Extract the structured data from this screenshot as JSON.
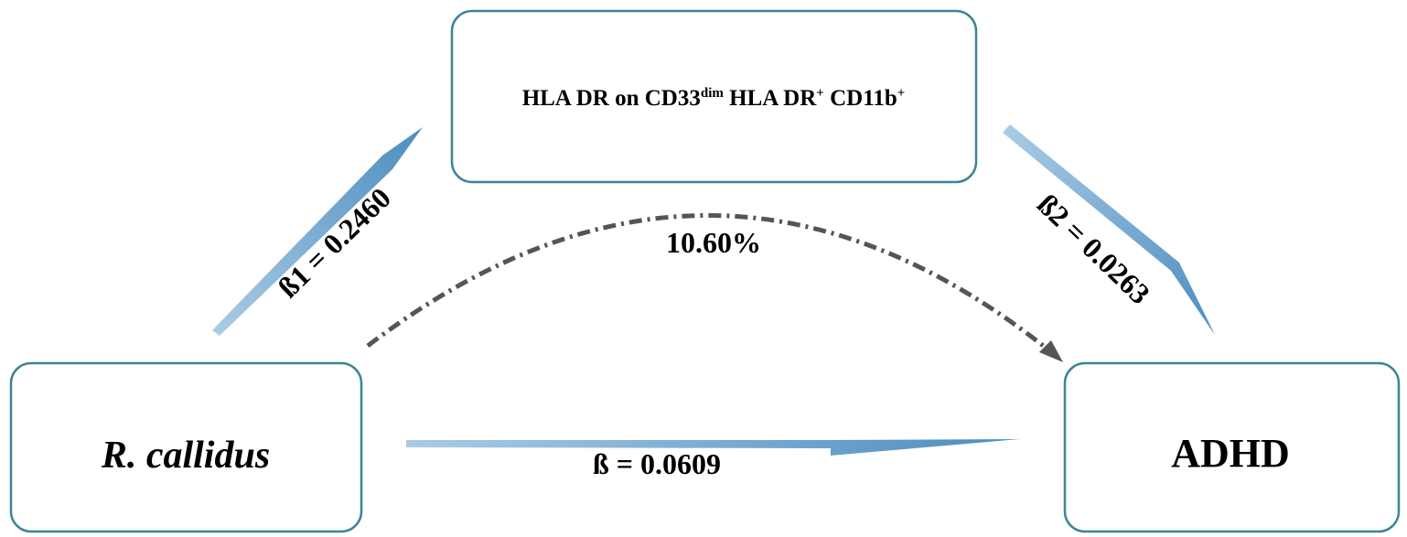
{
  "nodes": {
    "exposure": {
      "label": "R. callidus"
    },
    "mediator": {
      "label_parts": [
        "HLA DR on CD33",
        "dim",
        " HLA DR",
        "+",
        " CD11b",
        "+"
      ]
    },
    "outcome": {
      "label": "ADHD"
    }
  },
  "edges": {
    "exposure_to_mediator": {
      "label": "ß1 = 0.2460"
    },
    "mediator_to_outcome": {
      "label": "ß2 = 0.0263"
    },
    "exposure_to_outcome": {
      "label": "ß = 0.0609"
    },
    "indirect_effect": {
      "label": "10.60%"
    }
  },
  "colors": {
    "box_border": "#3b8597",
    "arrow_start": "#a9cbe5",
    "arrow_end": "#4d8dbf",
    "dashed_arrow": "#555555"
  }
}
